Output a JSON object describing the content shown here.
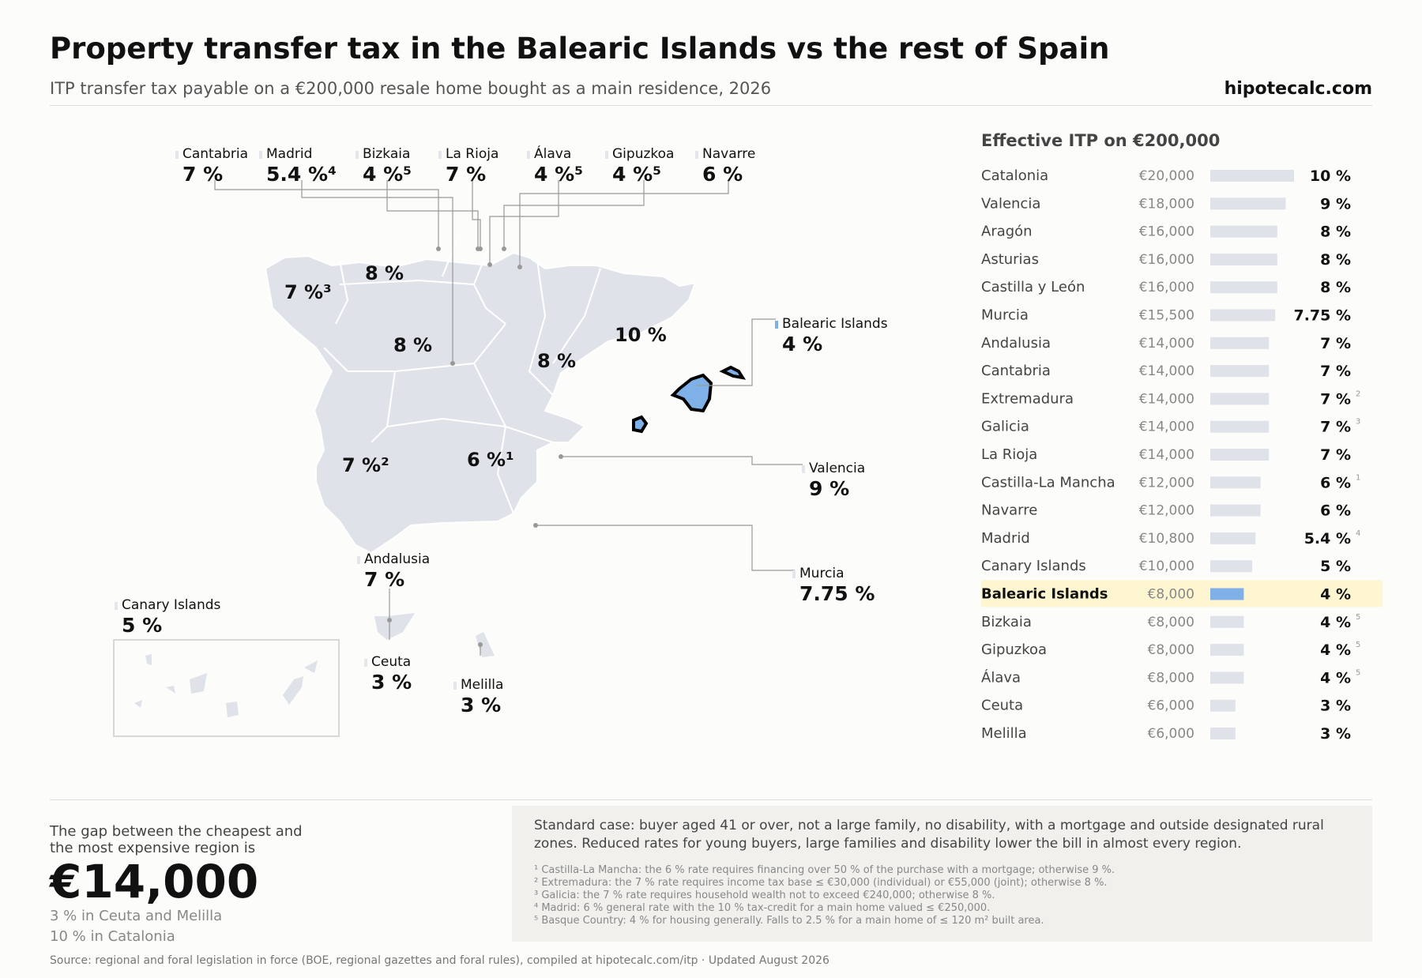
{
  "header": {
    "title": "Property transfer tax in the Balearic Islands vs the rest of Spain",
    "subtitle": "ITP transfer tax payable on a €200,000 resale home bought as a main residence, 2026",
    "brand": "hipotecalc.com"
  },
  "map": {
    "callouts": [
      {
        "name": "Cantabria",
        "value": "7 %"
      },
      {
        "name": "Madrid",
        "value": "5.4 %⁴"
      },
      {
        "name": "Bizkaia",
        "value": "4 %⁵"
      },
      {
        "name": "La Rioja",
        "value": "7 %"
      },
      {
        "name": "Álava",
        "value": "4 %⁵"
      },
      {
        "name": "Gipuzkoa",
        "value": "4 %⁵"
      },
      {
        "name": "Navarre",
        "value": "6 %"
      },
      {
        "name": "Balearic Islands",
        "value": "4 %"
      },
      {
        "name": "Valencia",
        "value": "9 %"
      },
      {
        "name": "Murcia",
        "value": "7.75 %"
      },
      {
        "name": "Andalusia",
        "value": "7 %"
      },
      {
        "name": "Canary Islands",
        "value": "5 %"
      },
      {
        "name": "Ceuta",
        "value": "3 %"
      },
      {
        "name": "Melilla",
        "value": "3 %"
      }
    ],
    "inside_labels": [
      {
        "region": "Galicia",
        "value": "7 %³"
      },
      {
        "region": "Asturias",
        "value": "8 %"
      },
      {
        "region": "Castilla y León",
        "value": "8 %"
      },
      {
        "region": "Aragón",
        "value": "8 %"
      },
      {
        "region": "Catalonia",
        "value": "10 %"
      },
      {
        "region": "Extremadura",
        "value": "7 %²"
      },
      {
        "region": "Castilla-La Mancha",
        "value": "6 %¹"
      }
    ],
    "colors": {
      "land": "#dfe2e8",
      "border": "#ffffff",
      "highlight": "#7fb0e8",
      "leader": "#999999"
    }
  },
  "chart_data": {
    "type": "bar",
    "title": "Effective ITP on €200,000",
    "categories": [
      "Catalonia",
      "Valencia",
      "Aragón",
      "Asturias",
      "Castilla y León",
      "Murcia",
      "Andalusia",
      "Cantabria",
      "Extremadura",
      "Galicia",
      "La Rioja",
      "Castilla-La Mancha",
      "Navarre",
      "Madrid",
      "Canary Islands",
      "Balearic Islands",
      "Bizkaia",
      "Gipuzkoa",
      "Álava",
      "Ceuta",
      "Melilla"
    ],
    "values": [
      20000,
      18000,
      16000,
      16000,
      16000,
      15500,
      14000,
      14000,
      14000,
      14000,
      14000,
      12000,
      12000,
      10800,
      10000,
      8000,
      8000,
      8000,
      8000,
      6000,
      6000
    ],
    "amount_labels": [
      "€20,000",
      "€18,000",
      "€16,000",
      "€16,000",
      "€16,000",
      "€15,500",
      "€14,000",
      "€14,000",
      "€14,000",
      "€14,000",
      "€14,000",
      "€12,000",
      "€12,000",
      "€10,800",
      "€10,000",
      "€8,000",
      "€8,000",
      "€8,000",
      "€8,000",
      "€6,000",
      "€6,000"
    ],
    "rate_labels": [
      "10 %",
      "9 %",
      "8 %",
      "8 %",
      "8 %",
      "7.75 %",
      "7 %",
      "7 %",
      "7 %",
      "7 %",
      "7 %",
      "6 %",
      "6 %",
      "5.4 %",
      "5 %",
      "4 %",
      "4 %",
      "4 %",
      "4 %",
      "3 %",
      "3 %"
    ],
    "notes": [
      "",
      "",
      "",
      "",
      "",
      "",
      "",
      "",
      "2",
      "3",
      "",
      "1",
      "",
      "4",
      "",
      "",
      "5",
      "5",
      "5",
      "",
      ""
    ],
    "highlight": "Balearic Islands",
    "colors": {
      "bar": "#dfe2e8",
      "highlight_bar": "#7fb0e8",
      "highlight_row": "#fdf6d0"
    }
  },
  "summary": {
    "gap_label": "The gap between the cheapest and the most expensive region is",
    "gap_value": "€14,000",
    "min_line": "3 % in Ceuta and Melilla",
    "max_line": "10 % in Catalonia"
  },
  "notes": {
    "main": "Standard case: buyer aged 41 or over, not a large family, no disability, with a mortgage and outside designated rural zones. Reduced rates for young buyers, large families and disability lower the bill in almost every region.",
    "footnotes": [
      "¹ Castilla-La Mancha: the 6 % rate requires financing over 50 % of the purchase with a mortgage; otherwise 9 %.",
      "² Extremadura: the 7 % rate requires income tax base ≤ €30,000 (individual) or €55,000 (joint); otherwise 8 %.",
      "³ Galicia: the 7 % rate requires household wealth not to exceed €240,000; otherwise 8 %.",
      "⁴ Madrid: 6 % general rate with the 10 % tax-credit for a main home valued ≤ €250,000.",
      "⁵ Basque Country: 4 % for housing generally. Falls to 2.5 % for a main home of ≤ 120 m² built area."
    ],
    "source": "Source: regional and foral legislation in force (BOE, regional gazettes and foral rules), compiled at hipotecalc.com/itp · Updated August 2026"
  }
}
